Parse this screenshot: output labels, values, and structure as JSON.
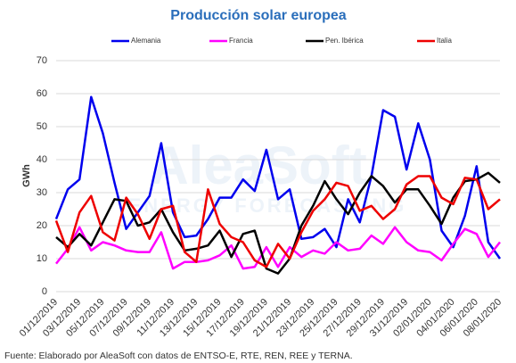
{
  "chart_data": {
    "type": "line",
    "title": "Producción solar europea",
    "y_label": "GWh",
    "source": "Fuente: Elaborado por AleaSoft con datos de ENTSO-E, RTE, REN, REE y TERNA.",
    "watermark": [
      "AleaSoft",
      "ENERGY FORECASTING"
    ],
    "categories": [
      "01/12/2019",
      null,
      "03/12/2019",
      null,
      "05/12/2019",
      null,
      "07/12/2019",
      null,
      "09/12/2019",
      null,
      "11/12/2019",
      null,
      "13/12/2019",
      null,
      "15/12/2019",
      null,
      "17/12/2019",
      null,
      "19/12/2019",
      null,
      "21/12/2019",
      null,
      "23/12/2019",
      null,
      "25/12/2019",
      null,
      "27/12/2019",
      null,
      "29/12/2019",
      null,
      "31/12/2019",
      null,
      "02/01/2020",
      null,
      "04/01/2020",
      null,
      "06/01/2020",
      null,
      "08/01/2020"
    ],
    "series": [
      {
        "name": "Alemania",
        "color": "#0000ee",
        "values": [
          22,
          31,
          34,
          59,
          48,
          33,
          19,
          24,
          29,
          45,
          24,
          16.5,
          17,
          22,
          28.5,
          28.5,
          34,
          30.5,
          43,
          28,
          31,
          16,
          16.5,
          19,
          13.5,
          28,
          21,
          35,
          55,
          53,
          37,
          51,
          40,
          18.5,
          13.5,
          23,
          38,
          15,
          10
        ]
      },
      {
        "name": "Francia",
        "color": "#ff00ff",
        "values": [
          8.5,
          13,
          19.5,
          12.5,
          15,
          14,
          12.5,
          12,
          12,
          18,
          7,
          9,
          9,
          9.5,
          11,
          14,
          7,
          7.5,
          13.5,
          7.5,
          13.5,
          10.5,
          12.5,
          11.5,
          15,
          12.5,
          13,
          17,
          14.5,
          19.5,
          15,
          12.5,
          12,
          9.5,
          14.5,
          19,
          17.5,
          10.5,
          15
        ]
      },
      {
        "name": "Pen. Ibérica",
        "color": "#000000",
        "values": [
          16.5,
          13.5,
          17.5,
          14,
          21,
          28,
          27.5,
          20,
          21,
          25,
          18,
          12.5,
          13,
          14,
          18.5,
          10.5,
          17.5,
          18.5,
          7,
          5.5,
          10,
          20,
          26,
          33.5,
          28,
          23.5,
          30,
          35,
          32,
          27,
          31,
          31,
          26,
          20.5,
          28.5,
          33.5,
          34,
          36,
          33
        ]
      },
      {
        "name": "Italia",
        "color": "#ee0000",
        "values": [
          21.5,
          12,
          24,
          29,
          18,
          15.5,
          28.5,
          23.5,
          16,
          25,
          26,
          12,
          9,
          31,
          20.5,
          16.5,
          15,
          9.5,
          7.5,
          14.5,
          10,
          18,
          24.5,
          28,
          33,
          32,
          24.5,
          26,
          22,
          25,
          32.5,
          35,
          35,
          28.5,
          26.5,
          34.5,
          34,
          25,
          28
        ]
      }
    ],
    "ylim": [
      0,
      70
    ],
    "yticks": [
      0,
      10,
      20,
      30,
      40,
      50,
      60,
      70
    ],
    "grid": true
  }
}
